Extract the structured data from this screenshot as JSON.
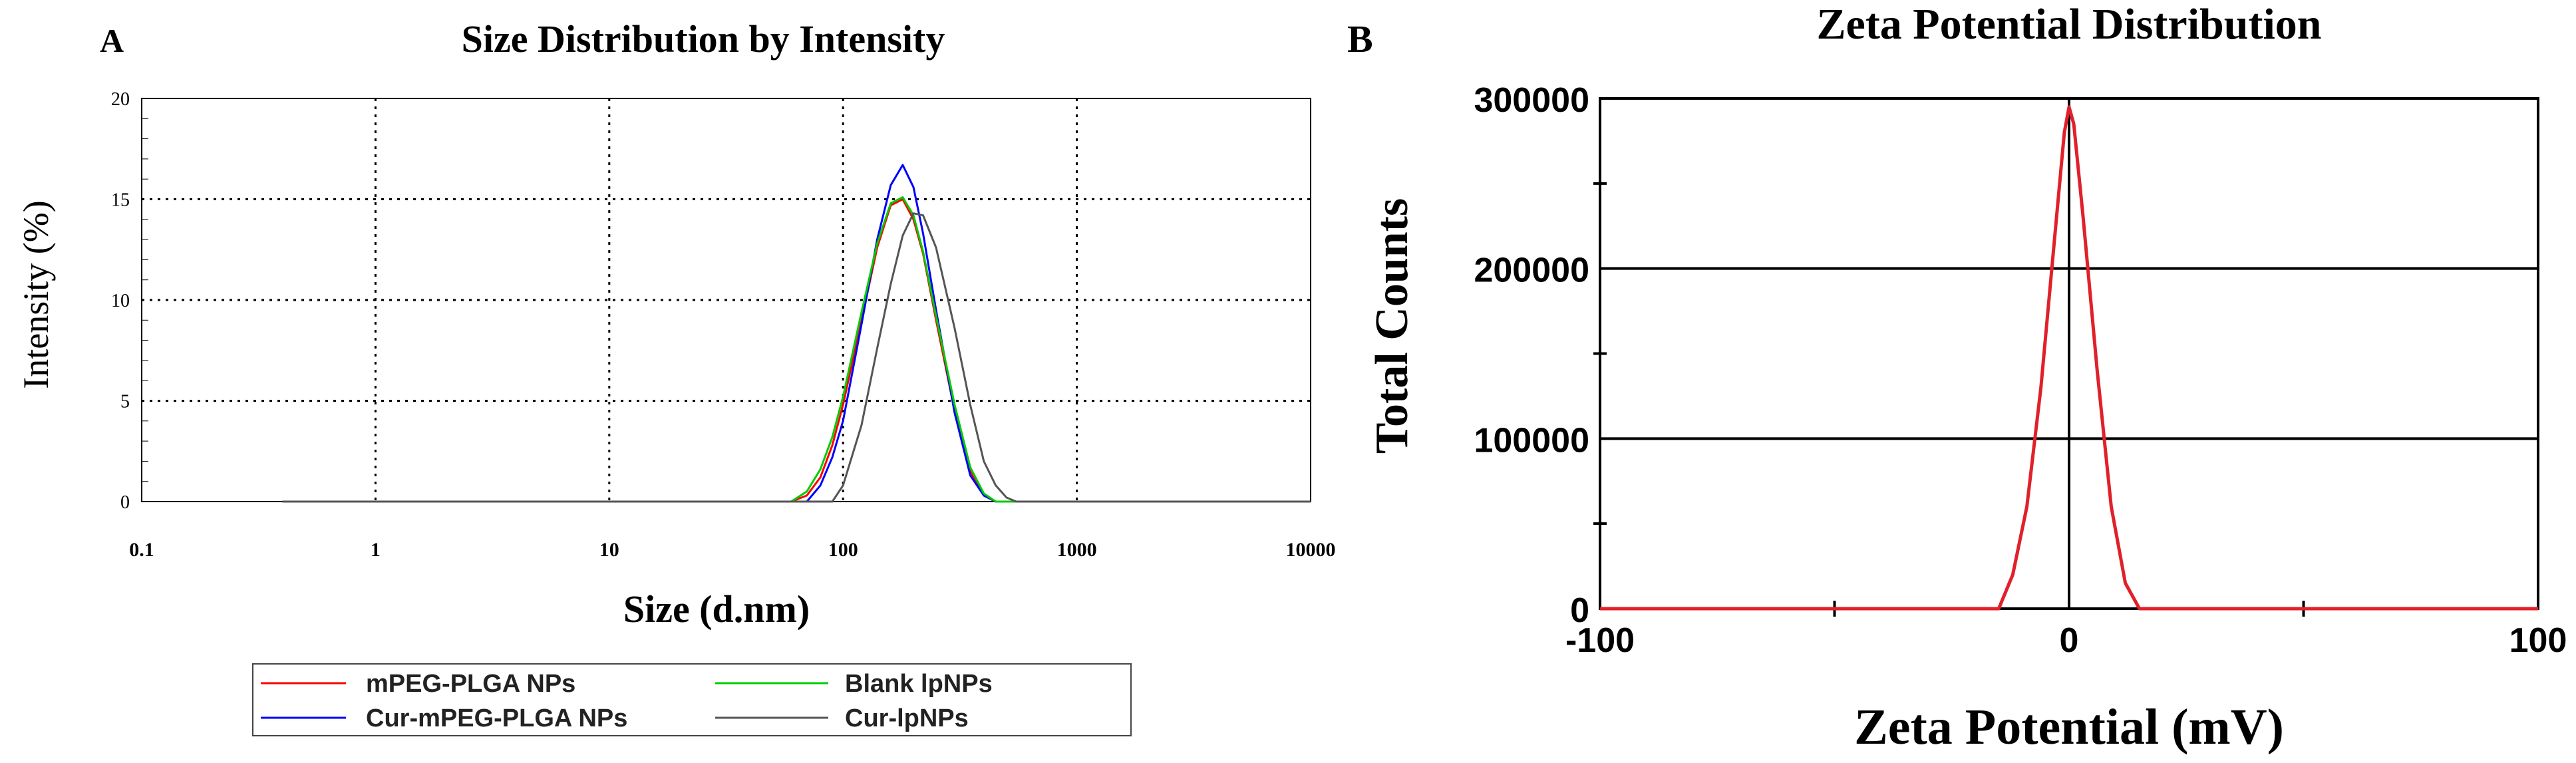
{
  "chart_data": [
    {
      "panel_label": "A",
      "type": "line",
      "title": "Size Distribution by Intensity",
      "xlabel": "Size (d.nm)",
      "ylabel": "Intensity (%)",
      "xscale": "log",
      "xlim": [
        0.1,
        10000
      ],
      "ylim": [
        0,
        20
      ],
      "xticks": [
        0.1,
        1,
        10,
        100,
        1000,
        10000
      ],
      "xtick_labels": [
        "0.1",
        "1",
        "10",
        "100",
        "1000",
        "10000"
      ],
      "yticks": [
        0,
        5,
        10,
        15,
        20
      ],
      "ytick_labels": [
        "0",
        "5",
        "10",
        "15",
        "20"
      ],
      "grid": "dotted",
      "legend_position": "bottom",
      "series": [
        {
          "name": "mPEG-PLGA NPs",
          "color": "#ff0000",
          "x": [
            0.4,
            60,
            70,
            80,
            90,
            100,
            120,
            140,
            160,
            180,
            200,
            220,
            250,
            300,
            350,
            400,
            450,
            10000
          ],
          "y": [
            0,
            0,
            0.3,
            1.2,
            2.8,
            4.8,
            9.0,
            12.6,
            14.7,
            15.0,
            14.0,
            12.3,
            9.0,
            4.5,
            1.5,
            0.3,
            0,
            0
          ]
        },
        {
          "name": "Cur-mPEG-PLGA NPs",
          "color": "#0000ff",
          "x": [
            0.4,
            70,
            80,
            90,
            100,
            120,
            140,
            160,
            180,
            200,
            220,
            250,
            300,
            350,
            400,
            450,
            10000
          ],
          "y": [
            0,
            0,
            0.8,
            2.2,
            4.0,
            8.8,
            13.0,
            15.7,
            16.7,
            15.6,
            13.3,
            9.5,
            4.4,
            1.3,
            0.3,
            0,
            0
          ]
        },
        {
          "name": "Blank lpNPs",
          "color": "#00cc00",
          "x": [
            0.4,
            60,
            70,
            80,
            90,
            100,
            120,
            140,
            160,
            180,
            200,
            220,
            250,
            300,
            350,
            400,
            450,
            10000
          ],
          "y": [
            0,
            0,
            0.5,
            1.6,
            3.2,
            5.2,
            9.4,
            12.8,
            14.8,
            15.1,
            14.2,
            12.4,
            9.2,
            4.8,
            1.7,
            0.4,
            0,
            0
          ]
        },
        {
          "name": "Cur-lpNPs",
          "color": "#555555",
          "x": [
            0.4,
            90,
            100,
            120,
            140,
            160,
            180,
            200,
            220,
            250,
            300,
            350,
            400,
            450,
            500,
            550,
            10000
          ],
          "y": [
            0,
            0,
            0.8,
            3.8,
            7.6,
            10.8,
            13.2,
            14.3,
            14.2,
            12.6,
            8.6,
            4.8,
            2.0,
            0.8,
            0.2,
            0,
            0
          ]
        }
      ]
    },
    {
      "panel_label": "B",
      "type": "line",
      "title": "Zeta Potential Distribution",
      "xlabel": "Zeta Potential (mV)",
      "ylabel": "Total Counts",
      "xlim": [
        -100,
        100
      ],
      "ylim": [
        0,
        300000
      ],
      "xticks": [
        -100,
        0,
        100
      ],
      "xtick_labels": [
        "-100",
        "0",
        "100"
      ],
      "yticks": [
        0,
        100000,
        200000,
        300000
      ],
      "ytick_labels": [
        "0",
        "100000",
        "200000",
        "300000"
      ],
      "grid": "horizontal",
      "series": [
        {
          "name": "Zeta potential",
          "color": "#e0202a",
          "x": [
            -100,
            -15,
            -12,
            -9,
            -6,
            -3,
            -1,
            0,
            1,
            3,
            6,
            9,
            12,
            15,
            100
          ],
          "y": [
            0,
            0,
            20000,
            60000,
            130000,
            220000,
            280000,
            295000,
            285000,
            230000,
            140000,
            60000,
            15000,
            0,
            0
          ]
        }
      ]
    }
  ]
}
